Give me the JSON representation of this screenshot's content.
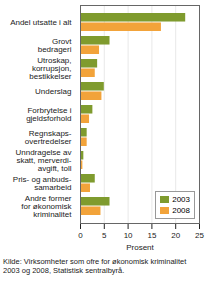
{
  "chart_data": {
    "type": "bar",
    "orientation": "horizontal",
    "categories": [
      "Andel utsatte i alt",
      "Grovt\nbedrageri",
      "Utroskap,\nkorrupsjon,\nbestikkelser",
      "Underslag",
      "Forbrytelse i\ngjeldsforhold",
      "Regnskaps-\novertredelser",
      "Unndragelse av\nskatt, merverdi-\navgift, toll",
      "Pris- og anbuds-\nsamarbeid",
      "Andre former\nfor økonomisk\nkriminalitet"
    ],
    "series": [
      {
        "name": "2003",
        "color": "#7f9b2e",
        "values": [
          22.1,
          6.2,
          3.6,
          5,
          2.6,
          1.4,
          0.7,
          3.1,
          6.2
        ]
      },
      {
        "name": "2008",
        "color": "#f2a33a",
        "values": [
          17,
          4,
          3.1,
          4.5,
          1.9,
          1.4,
          0.5,
          2.1,
          4.3
        ]
      }
    ],
    "xlim": [
      0,
      25
    ],
    "xticks": [
      0,
      5,
      10,
      15,
      20,
      25
    ],
    "xlabel": "Prosent",
    "grid": true,
    "legend": "lower right",
    "caption": "Kilde: Virksomheter som ofre for økonomisk kriminalitet 2003 og 2008, Statistisk sentralbyrå."
  }
}
